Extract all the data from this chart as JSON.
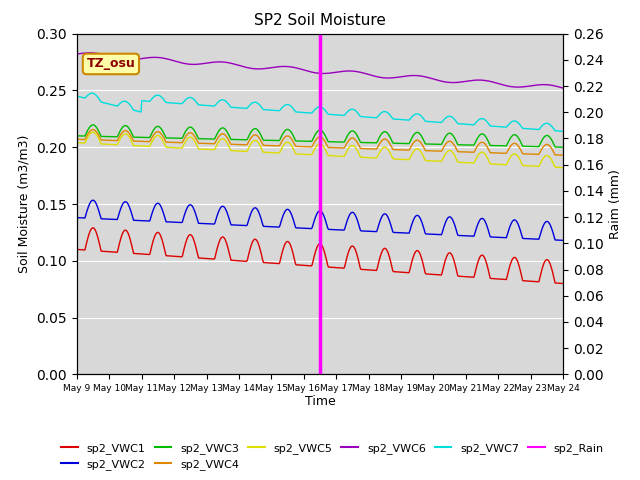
{
  "title": "SP2 Soil Moisture",
  "xlabel": "Time",
  "ylabel_left": "Soil Moisture (m3/m3)",
  "ylabel_right": "Raim (mm)",
  "ylim_left": [
    0.0,
    0.3
  ],
  "ylim_right": [
    0.0,
    0.26
  ],
  "xtick_labels": [
    "May 9",
    "May 10",
    "May 11",
    "May 12",
    "May 13",
    "May 14",
    "May 15",
    "May 16",
    "May 17",
    "May 18",
    "May 19",
    "May 20",
    "May 21",
    "May 22",
    "May 23",
    "May 24"
  ],
  "rain_event_day": 7.5,
  "annotation_label": "TZ_osu",
  "background_color": "#d8d8d8",
  "series_colors": {
    "sp2_VWC1": "#dd0000",
    "sp2_VWC2": "#0000dd",
    "sp2_VWC3": "#00bb00",
    "sp2_VWC4": "#dd8800",
    "sp2_VWC5": "#dddd00",
    "sp2_VWC6": "#9900bb",
    "sp2_VWC7": "#00dddd",
    "sp2_Rain": "#ff00ff"
  },
  "yticks_left": [
    0.0,
    0.05,
    0.1,
    0.15,
    0.2,
    0.25,
    0.3
  ],
  "yticks_right": [
    0.0,
    0.02,
    0.04,
    0.06,
    0.08,
    0.1,
    0.12,
    0.14,
    0.16,
    0.18,
    0.2,
    0.22,
    0.24,
    0.26
  ]
}
